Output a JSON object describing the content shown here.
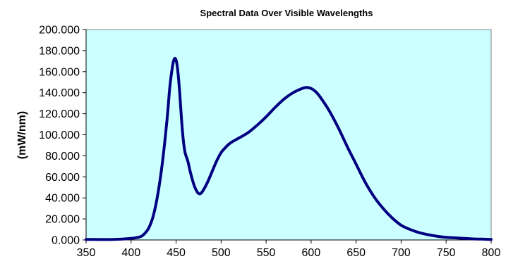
{
  "chart_data": {
    "type": "line",
    "title": "Spectral Data Over Visible Wavelengths",
    "xlabel": "",
    "ylabel": "(mW/nm)",
    "xlim": [
      350,
      800
    ],
    "ylim": [
      0,
      200
    ],
    "x_ticks": [
      350,
      400,
      450,
      500,
      550,
      600,
      650,
      700,
      750,
      800
    ],
    "x_tick_labels": [
      "350",
      "400",
      "450",
      "500",
      "550",
      "600",
      "650",
      "700",
      "750",
      "800"
    ],
    "y_ticks": [
      0,
      20,
      40,
      60,
      80,
      100,
      120,
      140,
      160,
      180,
      200
    ],
    "y_tick_labels": [
      "0.000",
      "20.000",
      "40.000",
      "60.000",
      "80.000",
      "100.000",
      "120.000",
      "140.000",
      "160.000",
      "180.000",
      "200.000"
    ],
    "grid": false,
    "legend": "none",
    "plot_background": "#ccffff",
    "series": [
      {
        "color": "#000080",
        "x": [
          350,
          380,
          400,
          410,
          415,
          420,
          425,
          430,
          435,
          440,
          443,
          446,
          448,
          450,
          452,
          454,
          456,
          458,
          460,
          463,
          466,
          470,
          474,
          477,
          480,
          485,
          490,
          495,
          500,
          505,
          510,
          520,
          530,
          540,
          550,
          560,
          570,
          580,
          590,
          595,
          600,
          605,
          610,
          620,
          630,
          640,
          650,
          660,
          670,
          680,
          690,
          700,
          710,
          720,
          730,
          740,
          750,
          760,
          770,
          780,
          790,
          800
        ],
        "y": [
          0.5,
          0.5,
          1.5,
          3,
          6,
          12,
          24,
          45,
          75,
          115,
          145,
          165,
          172,
          171,
          160,
          140,
          115,
          95,
          83,
          75,
          64,
          52,
          45,
          44,
          47,
          55,
          65,
          75,
          83,
          88,
          92,
          97,
          102,
          109,
          117,
          126,
          134,
          140,
          144,
          145,
          144,
          141,
          136,
          123,
          107,
          89,
          72,
          55,
          41,
          30,
          21,
          14,
          10,
          7,
          5,
          3.5,
          2.5,
          2,
          1.5,
          1,
          0.8,
          0.5
        ]
      }
    ]
  }
}
